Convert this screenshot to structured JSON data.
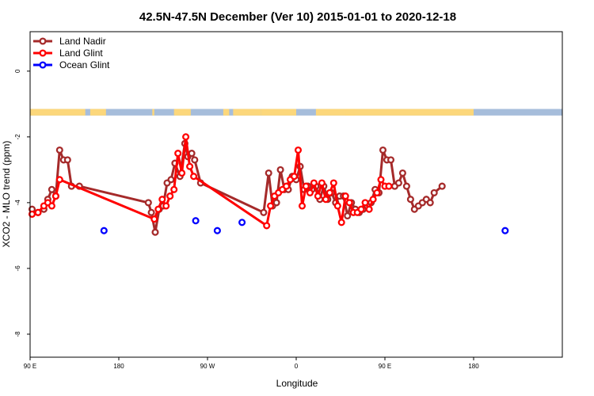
{
  "chart_data": {
    "type": "line",
    "title": "42.5N-47.5N December (Ver 10)   2015-01-01 to 2020-12-18",
    "xlabel": "Longitude",
    "ylabel": "XCO2 - MLO trend (ppm)",
    "xlim": [
      -90,
      180
    ],
    "ylim": [
      -8.7,
      1.2
    ],
    "x_ticks": [
      {
        "value": -90,
        "label": "90 E"
      },
      {
        "value": -45,
        "label": "180"
      },
      {
        "value": 0,
        "label": "90 W"
      },
      {
        "value": 45,
        "label": "0"
      },
      {
        "value": 90,
        "label": "90 E"
      },
      {
        "value": 135,
        "label": "180"
      }
    ],
    "y_ticks": [
      {
        "value": 0,
        "label": "0"
      },
      {
        "value": -2,
        "label": "-2"
      },
      {
        "value": -4,
        "label": "-4"
      },
      {
        "value": -6,
        "label": "-6"
      },
      {
        "value": -8,
        "label": "-8"
      }
    ],
    "land_mask": {
      "y_range": [
        -1.15,
        -1.35
      ],
      "land_color": "#fcd77b",
      "ocean_color": "#a6bddb",
      "land_segments": [
        [
          -90,
          -63.5
        ],
        [
          -59.5,
          -51.5
        ],
        [
          -63.5,
          -62
        ],
        [
          -17,
          -8.5
        ],
        [
          8,
          11
        ],
        [
          13,
          27
        ],
        [
          27,
          45
        ],
        [
          55,
          75
        ],
        [
          70,
          135
        ],
        [
          -28,
          -27
        ]
      ]
    },
    "legend_position": "top-left",
    "series": [
      {
        "name": "Land Nadir",
        "color": "#a52a2a",
        "x": [
          -89,
          -86,
          -83,
          -81,
          -79,
          -77,
          -75,
          -73,
          -71,
          -69,
          -65,
          -30,
          -28.5,
          -26.5,
          -24.5,
          -22.5,
          -20.5,
          -18.5,
          -16.5,
          -14,
          -11.5,
          -10,
          -8,
          -6.5,
          -3.5,
          28.5,
          31,
          33,
          35,
          37,
          39,
          41,
          43,
          45,
          47,
          49,
          51,
          53,
          55,
          57,
          59,
          61,
          63,
          65,
          67,
          69,
          71,
          73,
          75,
          77,
          79,
          81,
          83,
          85,
          87,
          89,
          91,
          93,
          95,
          97,
          99,
          101,
          103,
          105,
          107,
          109,
          111,
          113,
          115,
          119
        ],
        "y": [
          -4.2,
          -4.3,
          -4.2,
          -3.9,
          -3.6,
          -3.8,
          -2.4,
          -2.7,
          -2.7,
          -3.5,
          -3.5,
          -4.0,
          -4.3,
          -4.9,
          -4.2,
          -4.1,
          -3.4,
          -3.3,
          -2.8,
          -3.2,
          -2.2,
          -2.6,
          -2.5,
          -2.7,
          -3.4,
          -4.3,
          -3.1,
          -4.1,
          -4.0,
          -3.0,
          -3.6,
          -3.6,
          -3.2,
          -3.3,
          -2.9,
          -3.6,
          -3.5,
          -3.6,
          -3.5,
          -3.9,
          -3.5,
          -3.9,
          -3.7,
          -4.0,
          -3.8,
          -3.8,
          -4.4,
          -4.0,
          -4.2,
          -4.3,
          -4.2,
          -4.1,
          -4.0,
          -3.6,
          -3.7,
          -2.4,
          -2.7,
          -2.7,
          -3.5,
          -3.4,
          -3.1,
          -3.5,
          -3.9,
          -4.2,
          -4.1,
          -4.0,
          -3.9,
          -4.0,
          -3.7,
          -3.5
        ]
      },
      {
        "name": "Land Glint",
        "color": "#ff0000",
        "x": [
          -89,
          -86,
          -83,
          -81,
          -79,
          -77,
          -75,
          -27,
          -25,
          -23,
          -21,
          -19,
          -17,
          -15,
          -13,
          -11,
          -9,
          -7,
          30,
          32,
          34,
          36,
          38,
          40,
          42,
          44,
          46,
          48,
          50,
          52,
          54,
          56,
          58,
          60,
          62,
          64,
          66,
          68,
          70,
          72,
          74,
          76,
          78,
          80,
          82,
          84,
          86,
          88,
          90,
          92
        ],
        "y": [
          -4.35,
          -4.3,
          -4.1,
          -4.0,
          -4.1,
          -3.8,
          -3.3,
          -4.5,
          -4.2,
          -3.9,
          -4.1,
          -3.8,
          -3.6,
          -2.5,
          -3.1,
          -2.0,
          -2.9,
          -3.2,
          -4.7,
          -4.1,
          -3.8,
          -3.7,
          -3.6,
          -3.5,
          -3.3,
          -3.2,
          -2.4,
          -4.1,
          -3.5,
          -3.7,
          -3.4,
          -3.8,
          -3.4,
          -3.9,
          -3.7,
          -3.4,
          -4.1,
          -4.6,
          -3.8,
          -4.0,
          -4.3,
          -4.3,
          -4.2,
          -4.0,
          -4.2,
          -3.9,
          -3.7,
          -3.3,
          -3.5,
          -3.5
        ]
      },
      {
        "name": "Ocean Glint",
        "color": "#0000ff",
        "x": [
          -52.5,
          -6,
          5,
          17.5,
          151
        ],
        "y": [
          -4.85,
          -4.55,
          -4.85,
          -4.6,
          -4.85
        ]
      }
    ]
  }
}
